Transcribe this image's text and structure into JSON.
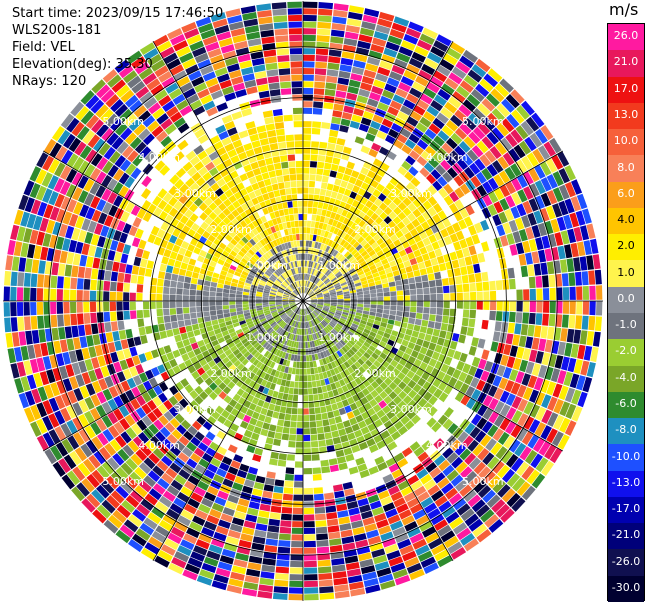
{
  "header": {
    "start_time": "Start time: 2023/09/15 17:46:50",
    "station": "WLS200s-181",
    "field": "Field: VEL",
    "elevation": "Elevation(deg): 35.30",
    "nrays": "NRays: 120"
  },
  "colorbar": {
    "title": "m/s",
    "levels": [
      {
        "label": "26.0",
        "color": "#ff1aa0"
      },
      {
        "label": "21.0",
        "color": "#e8185c"
      },
      {
        "label": "17.0",
        "color": "#ee1111"
      },
      {
        "label": "13.0",
        "color": "#f23a1e"
      },
      {
        "label": "10.0",
        "color": "#f6603a"
      },
      {
        "label": "8.0",
        "color": "#f88058"
      },
      {
        "label": "6.0",
        "color": "#fb9e1a"
      },
      {
        "label": "4.0",
        "color": "#ffc400"
      },
      {
        "label": "2.0",
        "color": "#ffee00"
      },
      {
        "label": "1.0",
        "color": "#fff44d"
      },
      {
        "label": "0.0",
        "color": "#8a8f99"
      },
      {
        "label": "-1.0",
        "color": "#6e737d"
      },
      {
        "label": "-2.0",
        "color": "#9acd32"
      },
      {
        "label": "-4.0",
        "color": "#7aa628"
      },
      {
        "label": "-6.0",
        "color": "#2e8b2e"
      },
      {
        "label": "-8.0",
        "color": "#1e90c0"
      },
      {
        "label": "-10.0",
        "color": "#1e50ff"
      },
      {
        "label": "-13.0",
        "color": "#1010ee"
      },
      {
        "label": "-17.0",
        "color": "#0000b0"
      },
      {
        "label": "-21.0",
        "color": "#00007a"
      },
      {
        "label": "-26.0",
        "color": "#101050"
      },
      {
        "label": "-30.0",
        "color": "#000030"
      }
    ]
  },
  "chart_data": {
    "type": "heatmap",
    "projection": "polar PPI",
    "field": "VEL",
    "units": "m/s",
    "nrays": 120,
    "range_rings_km": [
      1.0,
      2.0,
      3.0,
      4.0,
      5.0
    ],
    "range_ring_labels": [
      "1.00km",
      "2.00km",
      "3.00km",
      "4.00km",
      "5.00km"
    ],
    "clim": [
      -30.0,
      26.0
    ],
    "regions": [
      {
        "sector": "north (upper half, inner)",
        "velocity_band": "2.0 to 4.0",
        "color": "yellow"
      },
      {
        "sector": "south (lower half, inner)",
        "velocity_band": "-2.0 to -4.0",
        "color": "olive green"
      },
      {
        "sector": "east-west strip near center",
        "velocity_band": "0.0 to -1.0",
        "color": "grey"
      },
      {
        "sector": "outer ranges beyond ~3.00km",
        "velocity_band": "noise",
        "color": "mixed"
      }
    ]
  }
}
